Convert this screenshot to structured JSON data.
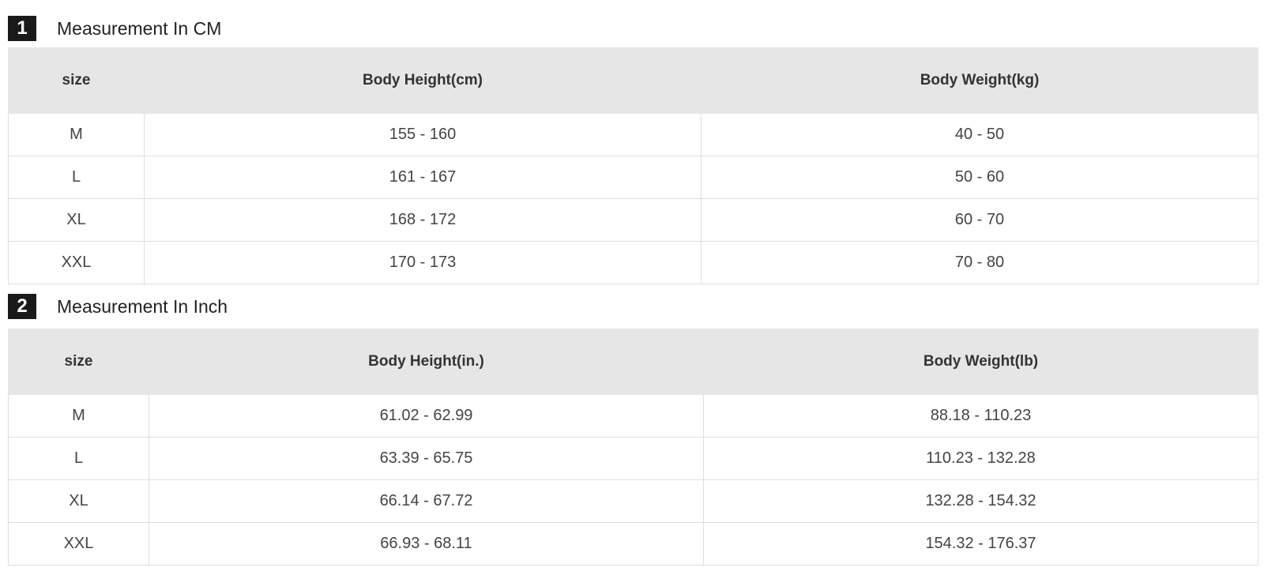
{
  "sections": [
    {
      "badge": "1",
      "title": "Measurement In CM",
      "columns": [
        "size",
        "Body Height(cm)",
        "Body Weight(kg)"
      ],
      "rows": [
        {
          "size": "M",
          "height": "155 - 160",
          "weight": "40 - 50"
        },
        {
          "size": "L",
          "height": "161 - 167",
          "weight": "50 - 60"
        },
        {
          "size": "XL",
          "height": "168 - 172",
          "weight": "60 - 70"
        },
        {
          "size": "XXL",
          "height": "170 - 173",
          "weight": "70 - 80"
        }
      ]
    },
    {
      "badge": "2",
      "title": "Measurement In Inch",
      "columns": [
        "size",
        "Body Height(in.)",
        "Body Weight(lb)"
      ],
      "rows": [
        {
          "size": "M",
          "height": "61.02 - 62.99",
          "weight": "88.18 - 110.23"
        },
        {
          "size": "L",
          "height": "63.39 - 65.75",
          "weight": "110.23 - 132.28"
        },
        {
          "size": "XL",
          "height": "66.14 - 67.72",
          "weight": "132.28 - 154.32"
        },
        {
          "size": "XXL",
          "height": "66.93 - 68.11",
          "weight": "154.32 - 176.37"
        }
      ]
    }
  ]
}
